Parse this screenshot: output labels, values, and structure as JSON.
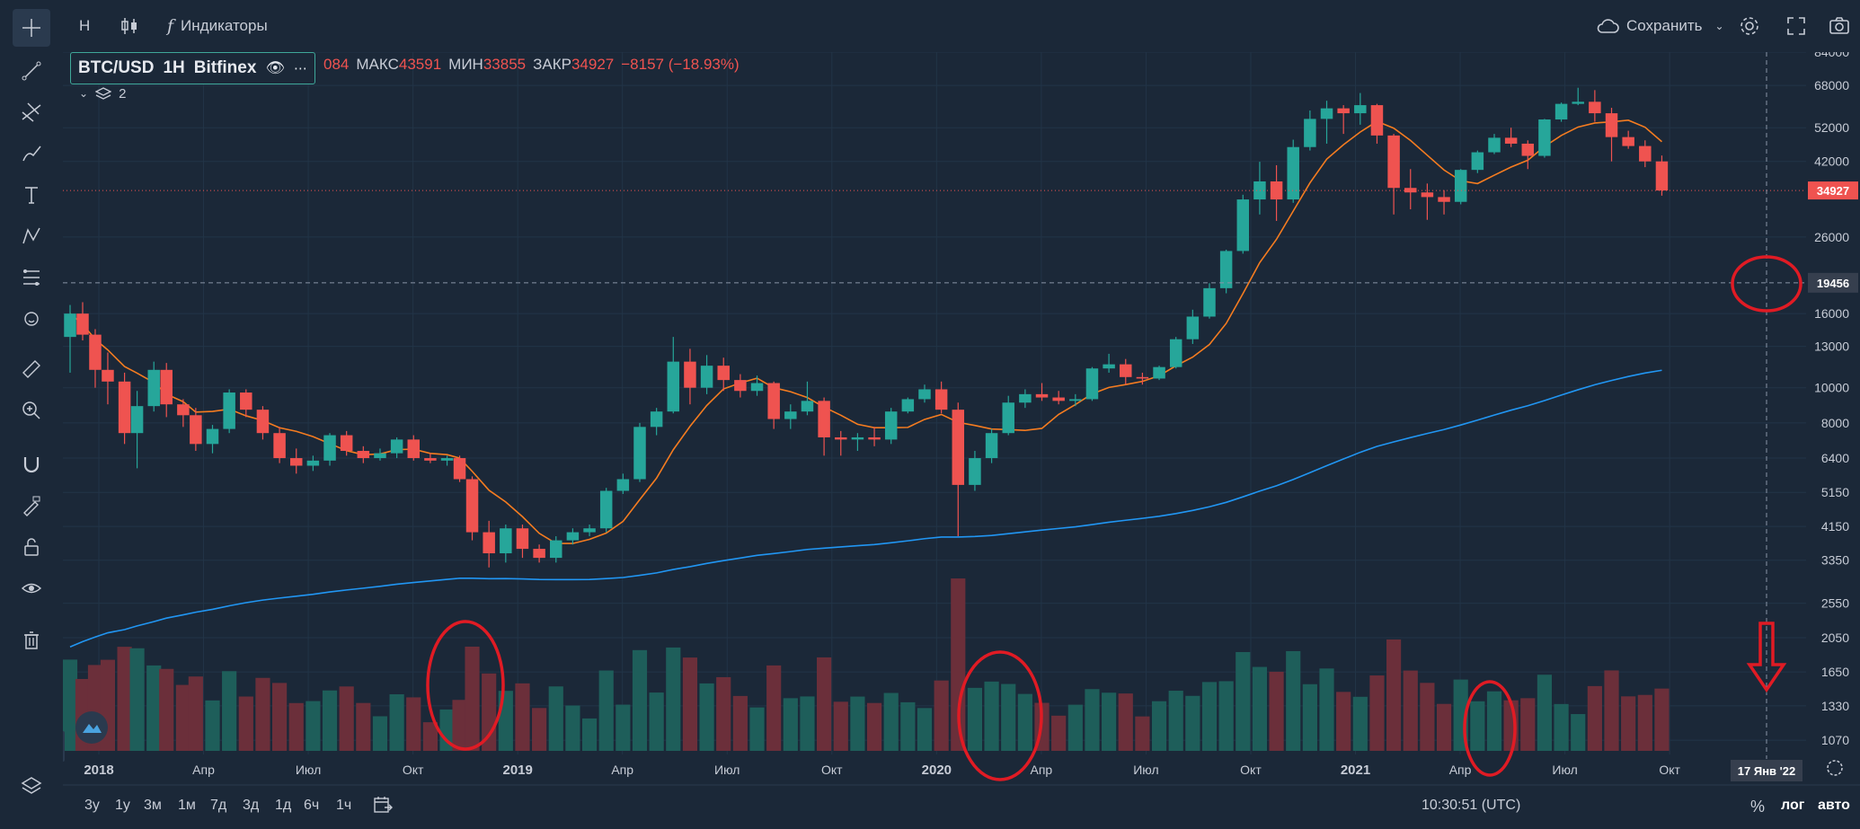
{
  "toolbar": {
    "interval_label": "Н",
    "indicators_label": "Индикаторы",
    "save_label": "Сохранить"
  },
  "legend": {
    "symbol": "BTC/USD",
    "interval": "1H",
    "exchange": "Bitfinex",
    "open_partial": "084",
    "high_label": "МАКС",
    "high_value": "43591",
    "low_label": "МИН",
    "low_value": "33855",
    "close_label": "ЗАКР",
    "close_value": "34927",
    "change": "−8157 (−18.93%)",
    "indicator_count": "2"
  },
  "bottom": {
    "timeframes": [
      "3у",
      "1у",
      "3м",
      "1м",
      "7д",
      "3д",
      "1д",
      "6ч",
      "1ч"
    ],
    "clock": "10:30:51 (UTC)",
    "percent_label": "%",
    "log_label": "лог",
    "auto_label": "авто"
  },
  "colors": {
    "background": "#1b2838",
    "up": "#26a69a",
    "down": "#ef5350",
    "ma_fast": "#f57c20",
    "ma_slow": "#2196f3",
    "annotation": "#e01b24"
  },
  "chart_data": {
    "type": "candlestick",
    "scale": "log",
    "y_ticks": [
      84000,
      68000,
      52000,
      42000,
      34927,
      26000,
      19456,
      16000,
      13000,
      10000,
      8000,
      6400,
      5150,
      4150,
      3350,
      2550,
      2050,
      1650,
      1330,
      1070
    ],
    "price_label_current": "34927",
    "price_label_crosshair": "19456",
    "x_ticks": [
      "2018",
      "Апр",
      "Июл",
      "Окт",
      "2019",
      "Апр",
      "Июл",
      "Окт",
      "2020",
      "Апр",
      "Июл",
      "Окт",
      "2021",
      "Апр",
      "Июл",
      "Окт"
    ],
    "crosshair_date_label": "17 Янв '22",
    "series": [
      {
        "values": [
          [
            2018.0,
            13800,
            16900,
            11000,
            16000
          ],
          [
            2018.03,
            16000,
            17200,
            13500,
            14000
          ],
          [
            2018.06,
            14000,
            14500,
            10000,
            11200
          ],
          [
            2018.09,
            11200,
            12500,
            9000,
            10400
          ],
          [
            2018.13,
            10400,
            11000,
            7000,
            7500
          ],
          [
            2018.16,
            7500,
            9800,
            6000,
            8900
          ],
          [
            2018.2,
            8900,
            11800,
            8600,
            11200
          ],
          [
            2018.23,
            11200,
            11700,
            8300,
            9000
          ],
          [
            2018.27,
            9000,
            9300,
            7800,
            8400
          ],
          [
            2018.3,
            8400,
            8800,
            6700,
            7000
          ],
          [
            2018.34,
            7000,
            7900,
            6600,
            7700
          ],
          [
            2018.38,
            7700,
            9900,
            7500,
            9700
          ],
          [
            2018.42,
            9700,
            9900,
            8300,
            8700
          ],
          [
            2018.46,
            8700,
            8900,
            7200,
            7500
          ],
          [
            2018.5,
            7500,
            7800,
            6200,
            6400
          ],
          [
            2018.54,
            6400,
            6800,
            5800,
            6100
          ],
          [
            2018.58,
            6100,
            6500,
            5900,
            6300
          ],
          [
            2018.62,
            6300,
            7500,
            6100,
            7400
          ],
          [
            2018.66,
            7400,
            7600,
            6500,
            6700
          ],
          [
            2018.7,
            6700,
            6900,
            6200,
            6400
          ],
          [
            2018.74,
            6400,
            6800,
            6300,
            6600
          ],
          [
            2018.78,
            6600,
            7300,
            6400,
            7200
          ],
          [
            2018.82,
            7200,
            7400,
            6300,
            6400
          ],
          [
            2018.86,
            6400,
            6600,
            6200,
            6300
          ],
          [
            2018.9,
            6300,
            6500,
            6100,
            6400
          ],
          [
            2018.93,
            6400,
            6500,
            5500,
            5600
          ],
          [
            2018.96,
            5600,
            5700,
            3800,
            4000
          ],
          [
            2019.0,
            4000,
            4300,
            3200,
            3500
          ],
          [
            2019.04,
            3500,
            4200,
            3300,
            4100
          ],
          [
            2019.08,
            4100,
            4200,
            3400,
            3600
          ],
          [
            2019.12,
            3600,
            3700,
            3300,
            3400
          ],
          [
            2019.16,
            3400,
            3900,
            3300,
            3800
          ],
          [
            2019.2,
            3800,
            4100,
            3700,
            4000
          ],
          [
            2019.24,
            4000,
            4200,
            3900,
            4100
          ],
          [
            2019.28,
            4100,
            5300,
            4000,
            5200
          ],
          [
            2019.32,
            5200,
            5800,
            5100,
            5600
          ],
          [
            2019.36,
            5600,
            8000,
            5500,
            7800
          ],
          [
            2019.4,
            7800,
            8800,
            7400,
            8600
          ],
          [
            2019.44,
            8600,
            13800,
            8500,
            11800
          ],
          [
            2019.48,
            11800,
            12800,
            9000,
            10000
          ],
          [
            2019.52,
            10000,
            12300,
            9600,
            11500
          ],
          [
            2019.56,
            11500,
            12100,
            9800,
            10500
          ],
          [
            2019.6,
            10500,
            10900,
            9400,
            9800
          ],
          [
            2019.64,
            9800,
            10800,
            9500,
            10300
          ],
          [
            2019.68,
            10300,
            10400,
            7700,
            8200
          ],
          [
            2019.72,
            8200,
            9000,
            7700,
            8600
          ],
          [
            2019.76,
            8600,
            10400,
            8400,
            9200
          ],
          [
            2019.8,
            9200,
            9400,
            6500,
            7300
          ],
          [
            2019.84,
            7300,
            7600,
            6500,
            7200
          ],
          [
            2019.88,
            7200,
            7500,
            6700,
            7300
          ],
          [
            2019.92,
            7300,
            7800,
            6900,
            7200
          ],
          [
            2019.96,
            7200,
            8800,
            7000,
            8600
          ],
          [
            2020.0,
            8600,
            9400,
            8500,
            9300
          ],
          [
            2020.04,
            9300,
            10200,
            9100,
            9900
          ],
          [
            2020.08,
            9900,
            10400,
            8500,
            8700
          ],
          [
            2020.12,
            8700,
            9100,
            3900,
            5400
          ],
          [
            2020.16,
            5400,
            6700,
            5200,
            6400
          ],
          [
            2020.2,
            6400,
            7700,
            6200,
            7500
          ],
          [
            2020.24,
            7500,
            9500,
            7400,
            9100
          ],
          [
            2020.28,
            9100,
            9900,
            8800,
            9600
          ],
          [
            2020.32,
            9600,
            10300,
            9200,
            9400
          ],
          [
            2020.36,
            9400,
            9800,
            9000,
            9200
          ],
          [
            2020.4,
            9200,
            9600,
            8900,
            9300
          ],
          [
            2020.44,
            9300,
            11400,
            9200,
            11300
          ],
          [
            2020.48,
            11300,
            12400,
            11000,
            11600
          ],
          [
            2020.52,
            11600,
            12000,
            10200,
            10700
          ],
          [
            2020.56,
            10700,
            11000,
            10200,
            10600
          ],
          [
            2020.6,
            10600,
            11500,
            10500,
            11400
          ],
          [
            2020.64,
            11400,
            13800,
            11300,
            13600
          ],
          [
            2020.68,
            13600,
            16400,
            13200,
            15700
          ],
          [
            2020.72,
            15700,
            19400,
            15500,
            18800
          ],
          [
            2020.76,
            18800,
            24000,
            18200,
            23800
          ],
          [
            2020.8,
            23800,
            34000,
            23400,
            33000
          ],
          [
            2020.84,
            33000,
            41900,
            30000,
            37000
          ],
          [
            2020.88,
            37000,
            41000,
            28800,
            33000
          ],
          [
            2020.92,
            33000,
            48200,
            32300,
            46000
          ],
          [
            2020.96,
            46000,
            58000,
            45000,
            55000
          ],
          [
            2021.0,
            55000,
            61700,
            47000,
            58800
          ],
          [
            2021.04,
            58800,
            60000,
            50000,
            57000
          ],
          [
            2021.08,
            57000,
            64800,
            53000,
            60000
          ],
          [
            2021.12,
            60000,
            60500,
            47000,
            49500
          ],
          [
            2021.16,
            49500,
            50000,
            30000,
            35500
          ],
          [
            2021.2,
            35500,
            40000,
            31000,
            34500
          ],
          [
            2021.24,
            34500,
            36500,
            29000,
            33500
          ],
          [
            2021.28,
            33500,
            35000,
            30000,
            32500
          ],
          [
            2021.32,
            32500,
            40000,
            32000,
            39800
          ],
          [
            2021.36,
            39800,
            45000,
            39000,
            44500
          ],
          [
            2021.4,
            44500,
            50000,
            44000,
            48800
          ],
          [
            2021.44,
            48800,
            52000,
            46000,
            47000
          ],
          [
            2021.48,
            47000,
            48000,
            40000,
            43500
          ],
          [
            2021.52,
            43500,
            55000,
            43000,
            54800
          ],
          [
            2021.56,
            54800,
            61000,
            54000,
            60500
          ],
          [
            2021.6,
            60500,
            67000,
            60000,
            61300
          ],
          [
            2021.64,
            61300,
            66000,
            54000,
            57000
          ],
          [
            2021.68,
            57000,
            59000,
            42000,
            49000
          ],
          [
            2021.72,
            49000,
            51000,
            45500,
            46300
          ],
          [
            2021.76,
            46300,
            48000,
            40500,
            42000
          ],
          [
            2021.8,
            42000,
            43600,
            33800,
            34927
          ]
        ]
      },
      {
        "name": "",
        "values": []
      }
    ]
  }
}
